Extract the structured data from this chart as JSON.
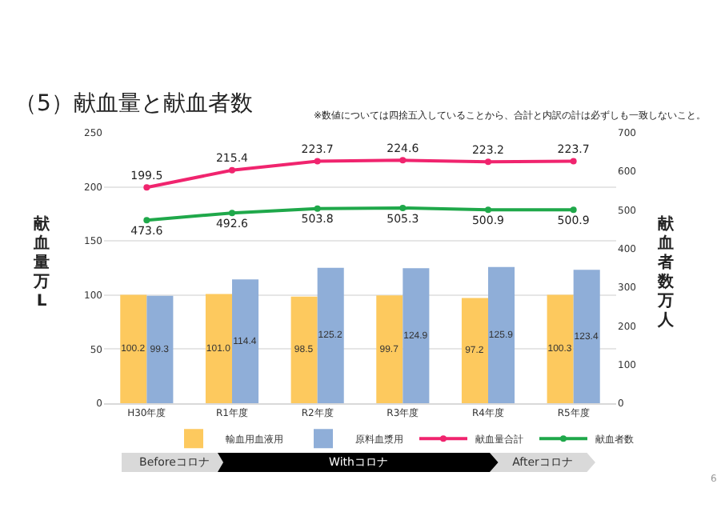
{
  "chart_data": {
    "type": "bar",
    "title": "（5）献血量と献血者数",
    "ylabel": "献血量万L",
    "y2label": "献血者数万人",
    "categories": [
      "H30年度",
      "R1年度",
      "R2年度",
      "R3年度",
      "R4年度",
      "R5年度"
    ],
    "series": [
      {
        "name": "輸血用血液用",
        "color": "#fdc95e",
        "values": [
          100.2,
          101.0,
          98.5,
          99.7,
          97.2,
          100.3
        ],
        "value_labels": [
          "100.2",
          "101.0",
          "98.5",
          "99.7",
          "97.2",
          "100.3"
        ]
      },
      {
        "name": "原料血漿用",
        "color": "#8faed8",
        "values": [
          99.3,
          114.4,
          125.2,
          124.9,
          125.9,
          123.4
        ],
        "value_labels": [
          "99.3",
          "114.4",
          "125.2",
          "124.9",
          "125.9",
          "123.4"
        ]
      },
      {
        "name": "献血量合計",
        "type": "line",
        "color": "#f0246e",
        "values": [
          199.5,
          215.4,
          223.7,
          224.6,
          223.2,
          223.7
        ],
        "value_labels": [
          "199.5",
          "215.4",
          "223.7",
          "224.6",
          "223.2",
          "223.7"
        ]
      },
      {
        "name": "献血者数",
        "type": "line",
        "axis": "y2",
        "color": "#1fa84a",
        "values": [
          473.6,
          492.6,
          503.8,
          505.3,
          500.9,
          500.9
        ],
        "value_labels": [
          "473.6",
          "492.6",
          "503.8",
          "505.3",
          "500.9",
          "500.9"
        ]
      }
    ],
    "ylim": [
      0,
      250
    ],
    "yticks": [
      0,
      50,
      100,
      150,
      200,
      250
    ],
    "y2lim": [
      0,
      700
    ],
    "y2ticks": [
      0,
      100,
      200,
      300,
      400,
      500,
      600,
      700
    ],
    "grid": "y",
    "legend": "bottom right",
    "marker": "circle",
    "annotations": [
      "※数値については四捨五入していることから、合計と内訳の計は必ずしも一致しないこと。",
      "Beforeコロナ",
      "Withコロナ",
      "Afterコロナ",
      "6"
    ]
  }
}
